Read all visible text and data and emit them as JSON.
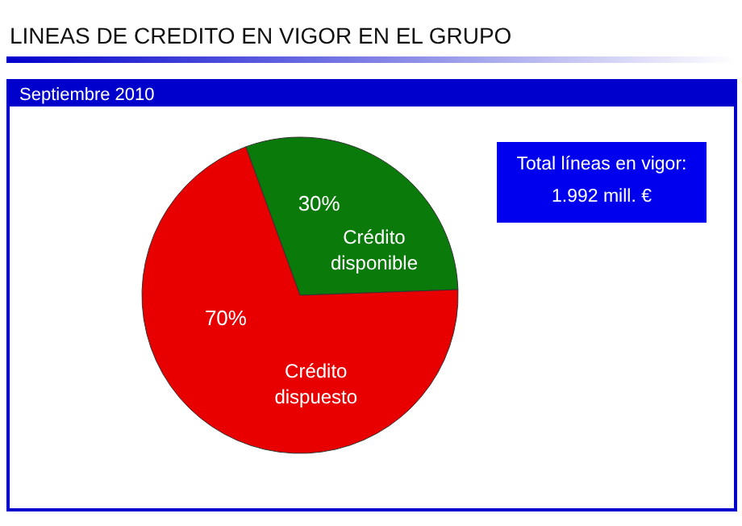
{
  "chart_data": {
    "type": "pie",
    "title": "LINEAS DE CREDITO EN VIGOR EN EL GRUPO",
    "subtitle": "Septiembre 2010",
    "categories": [
      "Crédito disponible",
      "Crédito dispuesto"
    ],
    "values": [
      30,
      70
    ],
    "colors": [
      "#0a7a0a",
      "#e80000"
    ],
    "value_labels": [
      "30%",
      "70%"
    ],
    "annotations": [
      "Total líneas en vigor:",
      "1.992 mill. €"
    ]
  }
}
